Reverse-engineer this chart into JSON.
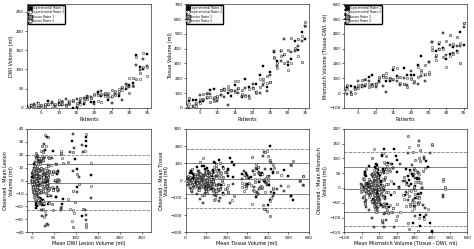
{
  "top_panels": [
    {
      "xlabel": "Patients",
      "ylabel": "DWI Volume (ml)",
      "ylim": [
        0,
        270
      ],
      "xlim": [
        1,
        36
      ],
      "yticks": [
        0,
        50,
        100,
        150,
        200,
        250
      ]
    },
    {
      "xlabel": "Patients",
      "ylabel": "Tissue Volume (ml)",
      "ylim": [
        0,
        700
      ],
      "xlim": [
        1,
        36
      ],
      "yticks": [
        0,
        100,
        200,
        300,
        400,
        500,
        600,
        700
      ]
    },
    {
      "xlabel": "Patients",
      "ylabel": "Mismatch Volume (Tissue-DWI, ml)",
      "ylim": [
        -100,
        600
      ],
      "xlim": [
        1,
        36
      ],
      "yticks": [
        -100,
        0,
        100,
        200,
        300,
        400,
        500,
        600
      ]
    }
  ],
  "bottom_panels": [
    {
      "xlabel": "Mean DWI Lesion Volume (ml)",
      "ylabel": "Observed - Mean Lesion\nVolume (ml)",
      "xlim": [
        -10,
        270
      ],
      "ylim": [
        -40,
        40
      ],
      "mean_line": -1.5,
      "upper_loa": 13,
      "lower_loa": -16,
      "upper_dashed": 20,
      "lower_dashed": -23,
      "yticks": [
        -40,
        -20,
        0,
        20,
        40
      ]
    },
    {
      "xlabel": "Mean Tissue Volume (ml)",
      "ylabel": "Observed - Mean Tissue\nVolume (ml)",
      "xlim": [
        0,
        600
      ],
      "ylim": [
        -300,
        300
      ],
      "mean_line": 10,
      "upper_loa": 100,
      "lower_loa": -80,
      "upper_dashed": 180,
      "lower_dashed": -160,
      "yticks": [
        -300,
        -200,
        -100,
        0,
        100,
        200,
        300
      ]
    },
    {
      "xlabel": "Mean Mismatch Volume (Tissue - DWI, ml)",
      "ylabel": "Observed - Mean Mismatch\nVolume (ml)",
      "xlim": [
        -100,
        600
      ],
      "ylim": [
        -150,
        200
      ],
      "mean_line": -5,
      "upper_loa": 70,
      "lower_loa": -80,
      "upper_dashed": 120,
      "lower_dashed": -130,
      "yticks": [
        -150,
        -100,
        -50,
        0,
        50,
        100,
        150,
        200
      ]
    }
  ],
  "legend_labels": [
    "Experimental Rater 1",
    "Experimental Rater 2",
    "Novice Rater 1",
    "Novice Rater 2"
  ],
  "marker_styles": [
    "s",
    "o",
    "s",
    "o"
  ],
  "marker_fill": [
    "black",
    "white",
    "gray",
    "lightgray"
  ],
  "marker_edge": [
    "black",
    "black",
    "black",
    "black"
  ],
  "n_patients": 35,
  "seed": 42
}
